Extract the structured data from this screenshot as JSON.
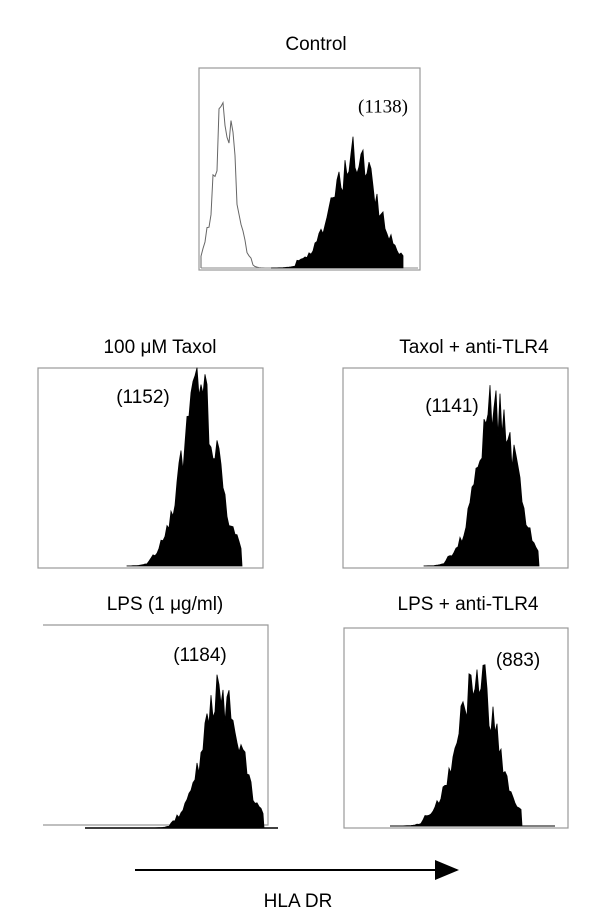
{
  "panels": [
    {
      "title": "Control",
      "mfi": "(1138)"
    },
    {
      "title": "100 μM Taxol",
      "mfi": "(1152)"
    },
    {
      "title": "Taxol + anti-TLR4",
      "mfi": "(1141)"
    },
    {
      "title": "LPS (1 μg/ml)",
      "mfi": "(1184)"
    },
    {
      "title": "LPS + anti-TLR4",
      "mfi": "(883)"
    }
  ],
  "axis_label": "HLA DR"
}
